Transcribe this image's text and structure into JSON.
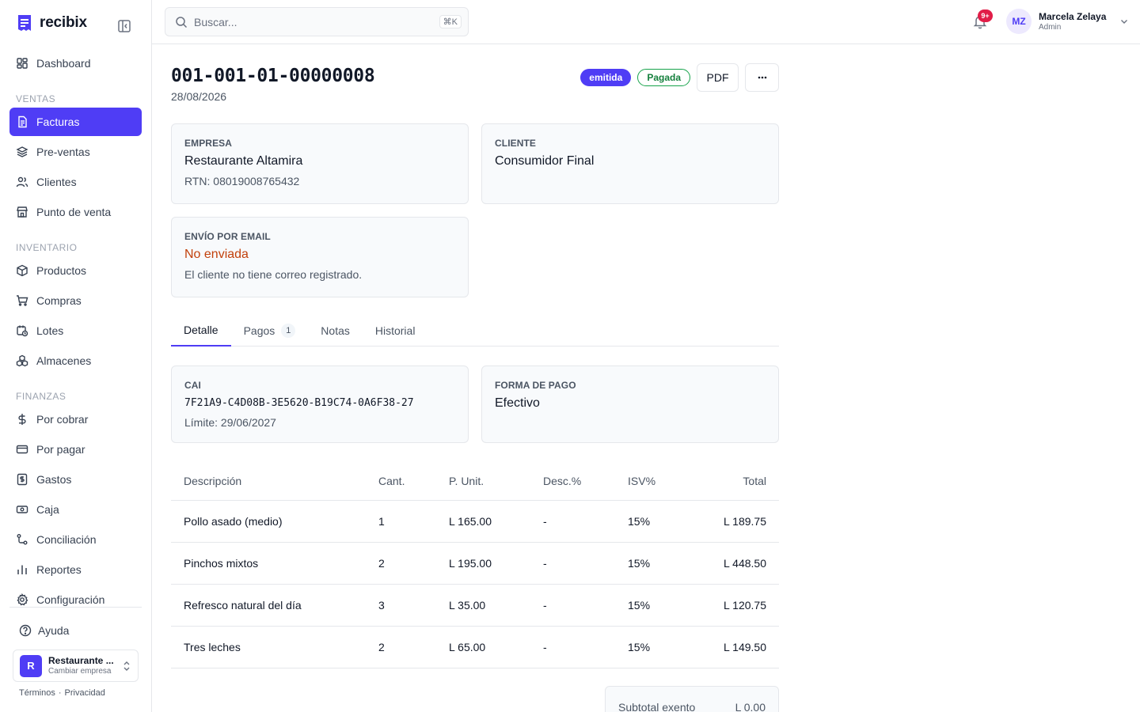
{
  "app": {
    "name": "recibix"
  },
  "sidebar": {
    "items": [
      {
        "label": "Dashboard"
      },
      {
        "section": "VENTAS"
      },
      {
        "label": "Facturas"
      },
      {
        "label": "Pre-ventas"
      },
      {
        "label": "Clientes"
      },
      {
        "label": "Punto de venta"
      },
      {
        "section": "INVENTARIO"
      },
      {
        "label": "Productos"
      },
      {
        "label": "Compras"
      },
      {
        "label": "Lotes"
      },
      {
        "label": "Almacenes"
      },
      {
        "section": "FINANZAS"
      },
      {
        "label": "Por cobrar"
      },
      {
        "label": "Por pagar"
      },
      {
        "label": "Gastos"
      },
      {
        "label": "Caja"
      },
      {
        "label": "Conciliación"
      },
      {
        "label": "Reportes"
      },
      {
        "label": "Configuración"
      }
    ],
    "active": "Facturas",
    "help_label": "Ayuda",
    "company": {
      "avatar": "R",
      "name": "Restaurante ...",
      "sub": "Cambiar empresa"
    },
    "legal": {
      "terms": "Términos",
      "separator": "·",
      "privacy": "Privacidad"
    }
  },
  "topbar": {
    "search_placeholder": "Buscar...",
    "search_shortcut": "⌘K",
    "notifications_badge": "9+",
    "user": {
      "initials": "MZ",
      "name": "Marcela Zelaya",
      "role": "Admin"
    }
  },
  "invoice": {
    "number": "001-001-01-00000008",
    "date": "28/08/2026",
    "status_badge": "emitida",
    "payment_badge": "Pagada",
    "pdf_label": "PDF",
    "more_icon": "ellipsis-icon",
    "empresa": {
      "label": "EMPRESA",
      "name": "Restaurante Altamira",
      "rtn": "RTN: 08019008765432"
    },
    "cliente": {
      "label": "CLIENTE",
      "name": "Consumidor Final"
    },
    "email": {
      "label": "ENVÍO POR EMAIL",
      "status": "No enviada",
      "note": "El cliente no tiene correo registrado."
    },
    "tabs": [
      {
        "label": "Detalle",
        "active": true
      },
      {
        "label": "Pagos",
        "count": "1"
      },
      {
        "label": "Notas"
      },
      {
        "label": "Historial"
      }
    ],
    "cai": {
      "label": "CAI",
      "code": "7F21A9-C4D08B-3E5620-B19C74-0A6F38-27",
      "limit": "Límite: 29/06/2027"
    },
    "forma_pago": {
      "label": "FORMA DE PAGO",
      "value": "Efectivo"
    },
    "table": {
      "headers": [
        "Descripción",
        "Cant.",
        "P. Unit.",
        "Desc.%",
        "ISV%",
        "Total"
      ],
      "rows": [
        [
          "Pollo asado (medio)",
          "1",
          "L 165.00",
          "-",
          "15%",
          "L 189.75"
        ],
        [
          "Pinchos mixtos",
          "2",
          "L 195.00",
          "-",
          "15%",
          "L 448.50"
        ],
        [
          "Refresco natural del día",
          "3",
          "L 35.00",
          "-",
          "15%",
          "L 120.75"
        ],
        [
          "Tres leches",
          "2",
          "L 65.00",
          "-",
          "15%",
          "L 149.50"
        ]
      ]
    },
    "totals": {
      "subtotal_exento_label": "Subtotal exento",
      "subtotal_exento_value": "L 0.00"
    }
  },
  "colors": {
    "accent": "#4f3df5",
    "warning": "#c2410c",
    "success": "#15803d",
    "badge_red": "#e11d48"
  }
}
